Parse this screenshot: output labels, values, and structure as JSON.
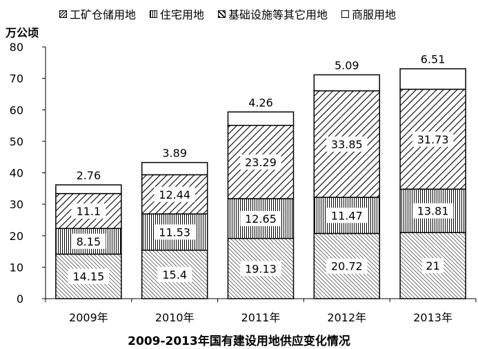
{
  "legend": [
    {
      "label": "工矿仓储用地",
      "pattern": "diag"
    },
    {
      "label": "住宅用地",
      "pattern": "vert"
    },
    {
      "label": "基础设施等其它用地",
      "pattern": "wide"
    },
    {
      "label": "商服用地",
      "pattern": "empty"
    }
  ],
  "chart_data": {
    "type": "bar",
    "stacked": true,
    "title": "2009-2013年国有建设用地供应变化情况",
    "ylabel": "万公顷",
    "xlabel": "",
    "categories": [
      "2009年",
      "2010年",
      "2011年",
      "2012年",
      "2013年"
    ],
    "ylim": [
      0,
      80
    ],
    "yticks": [
      0,
      10,
      20,
      30,
      40,
      50,
      60,
      70,
      80
    ],
    "grid": false,
    "legend_position": "top",
    "series": [
      {
        "name": "工矿仓储用地",
        "values": [
          14.15,
          15.4,
          19.13,
          20.72,
          21
        ],
        "labels": [
          "14.15",
          "15.4",
          "19.13",
          "20.72",
          "21"
        ]
      },
      {
        "name": "住宅用地",
        "values": [
          8.15,
          11.53,
          12.65,
          11.47,
          13.81
        ],
        "labels": [
          "8.15",
          "11.53",
          "12.65",
          "11.47",
          "13.81"
        ]
      },
      {
        "name": "基础设施等其它用地",
        "values": [
          11.1,
          12.44,
          23.29,
          33.85,
          31.73
        ],
        "labels": [
          "11.1",
          "12.44",
          "23.29",
          "33.85",
          "31.73"
        ]
      },
      {
        "name": "商服用地",
        "values": [
          2.76,
          3.89,
          4.26,
          5.09,
          6.51
        ],
        "labels": [
          "2.76",
          "3.89",
          "4.26",
          "5.09",
          "6.51"
        ]
      }
    ]
  }
}
